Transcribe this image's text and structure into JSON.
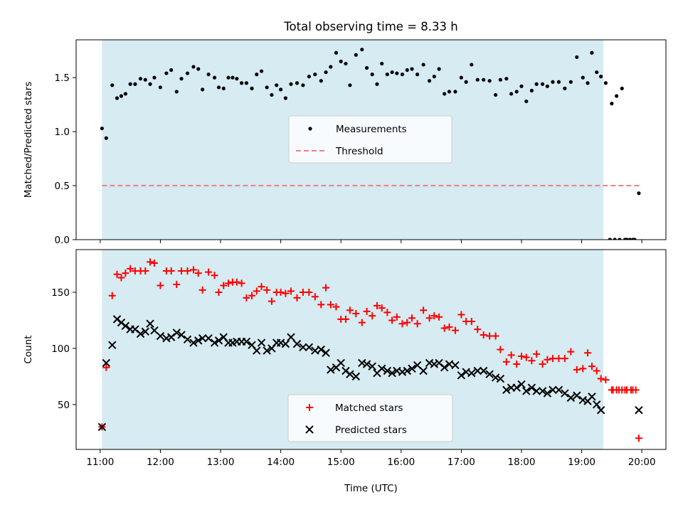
{
  "chart_data": [
    {
      "type": "scatter",
      "title": "Total observing time = 8.33 h",
      "ylabel": "Matched/Predicted stars",
      "xlabel": "",
      "xlim": [
        10.6,
        20.4
      ],
      "ylim": [
        0,
        1.85
      ],
      "x_ticks": [
        11,
        12,
        13,
        14,
        15,
        16,
        17,
        18,
        19,
        20
      ],
      "x_tick_labels": [
        "",
        "",
        "",
        "",
        "",
        "",
        "",
        "",
        "",
        ""
      ],
      "y_ticks": [
        0,
        0.5,
        1.0,
        1.5
      ],
      "y_tick_labels": [
        "0.0",
        "0.5",
        "1.0",
        "1.5"
      ],
      "shaded_interval": {
        "start": 11.03,
        "end": 19.36,
        "color": "#add8e6"
      },
      "legend_position": "center",
      "series": [
        {
          "name": "Measurements",
          "kind": "scatter",
          "marker": "dot",
          "color": "#000000",
          "x": [
            11.03,
            11.1,
            11.2,
            11.28,
            11.35,
            11.42,
            11.5,
            11.58,
            11.67,
            11.75,
            11.83,
            11.9,
            12.0,
            12.1,
            12.18,
            12.27,
            12.35,
            12.45,
            12.55,
            12.63,
            12.7,
            12.8,
            12.9,
            12.97,
            13.05,
            13.13,
            13.2,
            13.27,
            13.35,
            13.43,
            13.52,
            13.6,
            13.68,
            13.77,
            13.85,
            13.93,
            14.0,
            14.08,
            14.17,
            14.27,
            14.37,
            14.47,
            14.57,
            14.67,
            14.75,
            14.83,
            14.92,
            15.0,
            15.08,
            15.15,
            15.25,
            15.35,
            15.43,
            15.52,
            15.6,
            15.68,
            15.77,
            15.85,
            15.93,
            16.02,
            16.1,
            16.18,
            16.27,
            16.37,
            16.47,
            16.55,
            16.63,
            16.72,
            16.8,
            16.9,
            17.0,
            17.08,
            17.17,
            17.27,
            17.37,
            17.47,
            17.57,
            17.65,
            17.75,
            17.83,
            17.92,
            18.0,
            18.08,
            18.17,
            18.25,
            18.35,
            18.43,
            18.52,
            18.62,
            18.72,
            18.82,
            18.92,
            19.02,
            19.1,
            19.17,
            19.25,
            19.32,
            19.4,
            19.5,
            19.58,
            19.67,
            19.75,
            19.85,
            19.95
          ],
          "y": [
            1.03,
            0.94,
            1.43,
            1.31,
            1.33,
            1.35,
            1.44,
            1.44,
            1.49,
            1.48,
            1.44,
            1.5,
            1.41,
            1.54,
            1.57,
            1.37,
            1.49,
            1.54,
            1.6,
            1.58,
            1.39,
            1.53,
            1.5,
            1.41,
            1.4,
            1.5,
            1.5,
            1.49,
            1.45,
            1.45,
            1.4,
            1.53,
            1.56,
            1.41,
            1.34,
            1.43,
            1.39,
            1.31,
            1.44,
            1.45,
            1.43,
            1.51,
            1.53,
            1.47,
            1.55,
            1.6,
            1.73,
            1.65,
            1.63,
            1.43,
            1.71,
            1.76,
            1.59,
            1.53,
            1.44,
            1.63,
            1.53,
            1.55,
            1.54,
            1.53,
            1.57,
            1.58,
            1.53,
            1.62,
            1.47,
            1.51,
            1.58,
            1.35,
            1.37,
            1.37,
            1.5,
            1.46,
            1.62,
            1.48,
            1.48,
            1.47,
            1.34,
            1.48,
            1.49,
            1.35,
            1.37,
            1.42,
            1.28,
            1.38,
            1.44,
            1.44,
            1.42,
            1.46,
            1.46,
            1.4,
            1.46,
            1.69,
            1.5,
            1.45,
            1.73,
            1.55,
            1.51,
            1.45,
            1.26,
            1.33,
            1.4,
            0.0,
            0.0,
            0.43
          ],
          "extra_zero_points_x": [
            19.47,
            19.55,
            19.63,
            19.72,
            19.8,
            19.88
          ]
        },
        {
          "name": "Threshold",
          "kind": "line",
          "style": "dashed",
          "color": "#f08080",
          "x": [
            11.03,
            19.98
          ],
          "y": [
            0.5,
            0.5
          ]
        }
      ]
    },
    {
      "type": "scatter",
      "title": "",
      "xlabel": "Time (UTC)",
      "ylabel": "Count",
      "xlim": [
        10.6,
        20.4
      ],
      "ylim": [
        10,
        188
      ],
      "x_ticks": [
        11,
        12,
        13,
        14,
        15,
        16,
        17,
        18,
        19,
        20
      ],
      "x_tick_labels": [
        "11:00",
        "12:00",
        "13:00",
        "14:00",
        "15:00",
        "16:00",
        "17:00",
        "18:00",
        "19:00",
        "20:00"
      ],
      "y_ticks": [
        50,
        100,
        150
      ],
      "y_tick_labels": [
        "50",
        "100",
        "150"
      ],
      "shaded_interval": {
        "start": 11.03,
        "end": 19.36,
        "color": "#add8e6"
      },
      "legend_position": "lower center",
      "series": [
        {
          "name": "Matched stars",
          "kind": "scatter",
          "marker": "plus",
          "color": "#ff0000",
          "x": [
            11.03,
            11.1,
            11.2,
            11.28,
            11.35,
            11.42,
            11.5,
            11.58,
            11.67,
            11.75,
            11.83,
            11.9,
            12.0,
            12.1,
            12.18,
            12.27,
            12.35,
            12.45,
            12.55,
            12.63,
            12.7,
            12.8,
            12.9,
            12.97,
            13.05,
            13.13,
            13.2,
            13.27,
            13.35,
            13.43,
            13.52,
            13.6,
            13.68,
            13.77,
            13.85,
            13.93,
            14.0,
            14.08,
            14.17,
            14.27,
            14.37,
            14.47,
            14.57,
            14.67,
            14.75,
            14.83,
            14.92,
            15.0,
            15.08,
            15.15,
            15.25,
            15.35,
            15.43,
            15.52,
            15.6,
            15.68,
            15.77,
            15.85,
            15.93,
            16.02,
            16.1,
            16.18,
            16.27,
            16.37,
            16.47,
            16.55,
            16.63,
            16.72,
            16.8,
            16.9,
            17.0,
            17.08,
            17.17,
            17.27,
            17.37,
            17.47,
            17.57,
            17.65,
            17.75,
            17.83,
            17.92,
            18.0,
            18.08,
            18.17,
            18.25,
            18.35,
            18.43,
            18.52,
            18.62,
            18.72,
            18.82,
            18.92,
            19.02,
            19.1,
            19.17,
            19.25,
            19.32,
            19.4,
            19.5,
            19.58,
            19.67,
            19.75,
            19.85,
            19.95
          ],
          "y": [
            30,
            83,
            147,
            166,
            163,
            167,
            171,
            169,
            169,
            169,
            177,
            176,
            156,
            169,
            169,
            157,
            169,
            169,
            170,
            167,
            152,
            168,
            165,
            150,
            156,
            158,
            159,
            159,
            158,
            145,
            147,
            151,
            155,
            152,
            142,
            150,
            150,
            149,
            151,
            145,
            150,
            150,
            146,
            139,
            154,
            139,
            137,
            126,
            126,
            134,
            131,
            123,
            133,
            129,
            138,
            136,
            132,
            125,
            128,
            122,
            123,
            127,
            122,
            134,
            127,
            129,
            128,
            118,
            119,
            116,
            130,
            124,
            124,
            117,
            112,
            111,
            111,
            99,
            88,
            94,
            86,
            93,
            92,
            89,
            95,
            86,
            90,
            91,
            91,
            91,
            97,
            81,
            82,
            96,
            84,
            80,
            73,
            72,
            63,
            63,
            63,
            63,
            63,
            20
          ],
          "extra_points": [
            [
              19.52,
              63
            ],
            [
              19.62,
              63
            ],
            [
              19.72,
              63
            ],
            [
              19.82,
              63
            ],
            [
              19.9,
              63
            ]
          ]
        },
        {
          "name": "Predicted stars",
          "kind": "scatter",
          "marker": "x",
          "color": "#000000",
          "x": [
            11.03,
            11.1,
            11.2,
            11.28,
            11.35,
            11.42,
            11.5,
            11.58,
            11.67,
            11.75,
            11.83,
            11.9,
            12.0,
            12.1,
            12.18,
            12.27,
            12.35,
            12.45,
            12.55,
            12.63,
            12.7,
            12.8,
            12.9,
            12.97,
            13.05,
            13.13,
            13.2,
            13.27,
            13.35,
            13.43,
            13.52,
            13.6,
            13.68,
            13.77,
            13.85,
            13.93,
            14.0,
            14.08,
            14.17,
            14.27,
            14.37,
            14.47,
            14.57,
            14.67,
            14.75,
            14.83,
            14.92,
            15.0,
            15.08,
            15.15,
            15.25,
            15.35,
            15.43,
            15.52,
            15.6,
            15.68,
            15.77,
            15.85,
            15.93,
            16.02,
            16.1,
            16.18,
            16.27,
            16.37,
            16.47,
            16.55,
            16.63,
            16.72,
            16.8,
            16.9,
            17.0,
            17.08,
            17.17,
            17.27,
            17.37,
            17.47,
            17.57,
            17.65,
            17.75,
            17.83,
            17.92,
            18.0,
            18.08,
            18.17,
            18.25,
            18.35,
            18.43,
            18.52,
            18.62,
            18.72,
            18.82,
            18.92,
            19.02,
            19.1,
            19.17,
            19.25,
            19.32,
            19.95
          ],
          "y": [
            30,
            87,
            103,
            126,
            123,
            120,
            117,
            117,
            113,
            115,
            122,
            116,
            111,
            109,
            110,
            114,
            112,
            108,
            105,
            107,
            109,
            109,
            105,
            107,
            110,
            105,
            105,
            106,
            106,
            106,
            103,
            98,
            105,
            98,
            100,
            105,
            105,
            104,
            110,
            104,
            101,
            101,
            98,
            99,
            96,
            81,
            83,
            87,
            80,
            77,
            75,
            87,
            86,
            84,
            78,
            82,
            80,
            78,
            80,
            79,
            80,
            82,
            85,
            80,
            87,
            86,
            87,
            83,
            86,
            85,
            76,
            79,
            78,
            80,
            80,
            77,
            74,
            73,
            63,
            65,
            65,
            68,
            62,
            65,
            62,
            62,
            60,
            63,
            63,
            60,
            56,
            58,
            54,
            53,
            57,
            50,
            45,
            45
          ]
        }
      ]
    }
  ]
}
